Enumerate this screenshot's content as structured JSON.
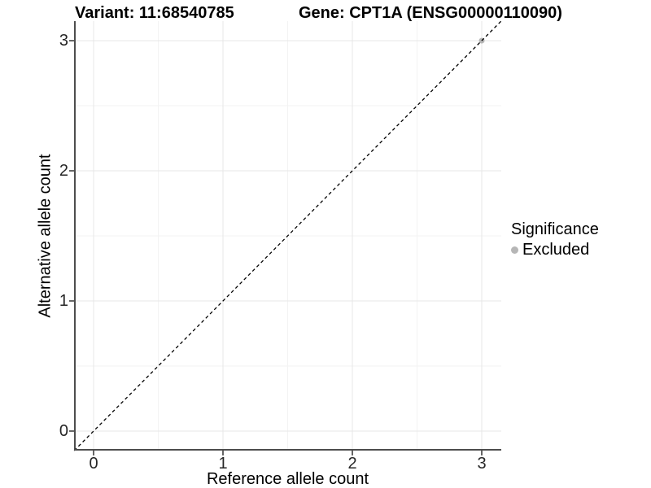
{
  "header": {
    "title_left": "Variant: 11:68540785",
    "title_right": "Gene: CPT1A (ENSG00000110090)"
  },
  "axes": {
    "x_label": "Reference allele count",
    "y_label": "Alternative allele count",
    "x_tick_labels": [
      "0",
      "1",
      "2",
      "3"
    ],
    "y_tick_labels": [
      "0",
      "1",
      "2",
      "3"
    ]
  },
  "legend": {
    "title": "Significance",
    "items": [
      {
        "label": "Excluded",
        "color": "#b6b6b6"
      }
    ]
  },
  "colors": {
    "background": "#ffffff",
    "axis_line": "#4d4d4d",
    "tick_mark": "#333333",
    "grid_major": "#e7e7e7",
    "grid_minor": "#f3f3f3",
    "reference_line": "#000000",
    "excluded_point": "#b6b6b6"
  },
  "chart_data": {
    "type": "scatter",
    "title": "Variant: 11:68540785 | Gene: CPT1A (ENSG00000110090)",
    "xlabel": "Reference allele count",
    "ylabel": "Alternative allele count",
    "xlim": [
      -0.15,
      3.15
    ],
    "ylim": [
      -0.15,
      3.15
    ],
    "x_ticks": [
      0,
      1,
      2,
      3
    ],
    "y_ticks": [
      0,
      1,
      2,
      3
    ],
    "minor_ticks_x": [
      0.5,
      1.5,
      2.5
    ],
    "minor_ticks_y": [
      0.5,
      1.5,
      2.5
    ],
    "grid": true,
    "legend_position": "right",
    "legend_title": "Significance",
    "series": [
      {
        "name": "Excluded",
        "color": "#b6b6b6",
        "points": [
          {
            "x": 3,
            "y": 3
          }
        ]
      }
    ],
    "reference_line": {
      "type": "identity",
      "style": "dashed",
      "color": "#000000",
      "from": [
        -0.15,
        -0.15
      ],
      "to": [
        3.15,
        3.15
      ]
    }
  }
}
